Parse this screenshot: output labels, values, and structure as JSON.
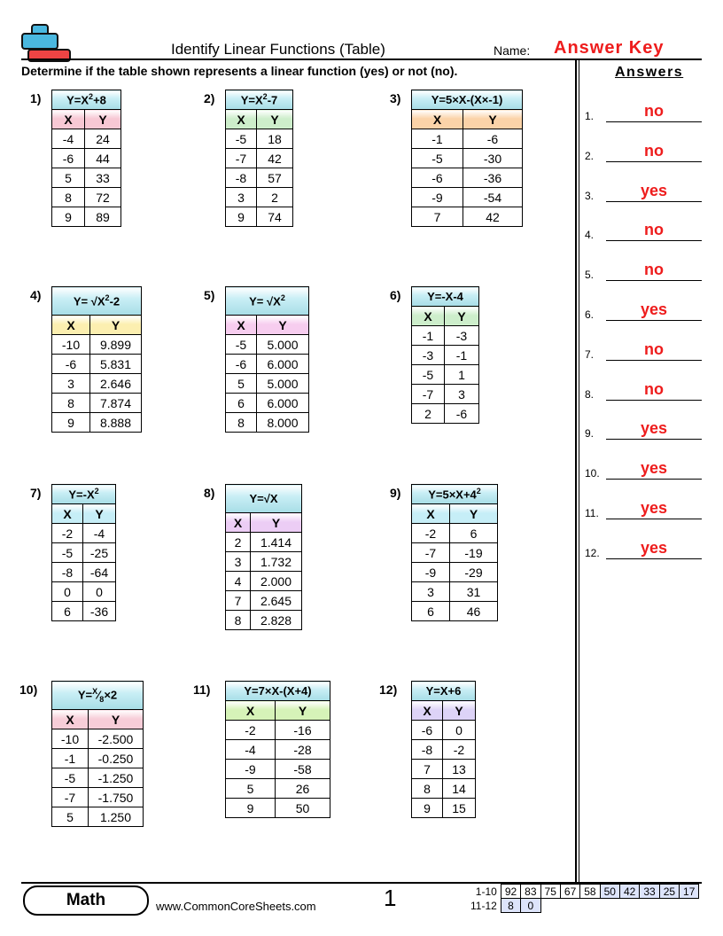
{
  "header": {
    "title": "Identify Linear Functions (Table)",
    "name_label": "Name:",
    "name_value": "Answer Key",
    "instructions": "Determine if the table shown represents a linear function (yes) or not (no)."
  },
  "colors": {
    "accent_red": "#ee1c1c",
    "logo_blue": "#4ab8e0",
    "logo_red": "#ee4444",
    "score_highlight": "#dde4fb"
  },
  "answers": {
    "heading": "Answers",
    "items": [
      {
        "num": "1.",
        "val": "no"
      },
      {
        "num": "2.",
        "val": "no"
      },
      {
        "num": "3.",
        "val": "yes"
      },
      {
        "num": "4.",
        "val": "no"
      },
      {
        "num": "5.",
        "val": "no"
      },
      {
        "num": "6.",
        "val": "yes"
      },
      {
        "num": "7.",
        "val": "no"
      },
      {
        "num": "8.",
        "val": "no"
      },
      {
        "num": "9.",
        "val": "yes"
      },
      {
        "num": "10.",
        "val": "yes"
      },
      {
        "num": "11.",
        "val": "yes"
      },
      {
        "num": "12.",
        "val": "yes"
      }
    ]
  },
  "problems": [
    {
      "label": "1)",
      "formula": [
        {
          "t": "Y=X"
        },
        {
          "t": "2",
          "s": "sup"
        },
        {
          "t": "+8"
        }
      ],
      "hdr_color": "#f7c8d4",
      "cols": [
        "X",
        "Y"
      ],
      "rows": [
        [
          "-4",
          "24"
        ],
        [
          "-6",
          "44"
        ],
        [
          "5",
          "33"
        ],
        [
          "8",
          "72"
        ],
        [
          "9",
          "89"
        ]
      ]
    },
    {
      "label": "2)",
      "formula": [
        {
          "t": "Y=X"
        },
        {
          "t": "2",
          "s": "sup"
        },
        {
          "t": "-7"
        }
      ],
      "hdr_color": "#cdeecb",
      "cols": [
        "X",
        "Y"
      ],
      "rows": [
        [
          "-5",
          "18"
        ],
        [
          "-7",
          "42"
        ],
        [
          "-8",
          "57"
        ],
        [
          "3",
          "2"
        ],
        [
          "9",
          "74"
        ]
      ]
    },
    {
      "label": "3)",
      "formula": [
        {
          "t": "Y=5×X-(X×-1)"
        }
      ],
      "hdr_color": "#fbd3a8",
      "cols": [
        "X",
        "Y"
      ],
      "rows": [
        [
          "-1",
          "-6"
        ],
        [
          "-5",
          "-30"
        ],
        [
          "-6",
          "-36"
        ],
        [
          "-9",
          "-54"
        ],
        [
          "7",
          "42"
        ]
      ]
    },
    {
      "label": "4)",
      "formula": [
        {
          "t": "Y= √X"
        },
        {
          "t": "2",
          "s": "sup"
        },
        {
          "t": "-2"
        }
      ],
      "hdr_color": "#fcefb0",
      "cols": [
        "X",
        "Y"
      ],
      "rows": [
        [
          "-10",
          "9.899"
        ],
        [
          "-6",
          "5.831"
        ],
        [
          "3",
          "2.646"
        ],
        [
          "8",
          "7.874"
        ],
        [
          "9",
          "8.888"
        ]
      ]
    },
    {
      "label": "5)",
      "formula": [
        {
          "t": "Y= √X"
        },
        {
          "t": "2",
          "s": "sup"
        }
      ],
      "hdr_color": "#f7cdef",
      "cols": [
        "X",
        "Y"
      ],
      "rows": [
        [
          "-5",
          "5.000"
        ],
        [
          "-6",
          "6.000"
        ],
        [
          "5",
          "5.000"
        ],
        [
          "6",
          "6.000"
        ],
        [
          "8",
          "8.000"
        ]
      ]
    },
    {
      "label": "6)",
      "formula": [
        {
          "t": "Y=-X-4"
        }
      ],
      "hdr_color": "#cdeecb",
      "cols": [
        "X",
        "Y"
      ],
      "rows": [
        [
          "-1",
          "-3"
        ],
        [
          "-3",
          "-1"
        ],
        [
          "-5",
          "1"
        ],
        [
          "-7",
          "3"
        ],
        [
          "2",
          "-6"
        ]
      ]
    },
    {
      "label": "7)",
      "formula": [
        {
          "t": "Y=-X"
        },
        {
          "t": "2",
          "s": "sup"
        }
      ],
      "hdr_color": "#c6eef7",
      "cols": [
        "X",
        "Y"
      ],
      "rows": [
        [
          "-2",
          "-4"
        ],
        [
          "-5",
          "-25"
        ],
        [
          "-8",
          "-64"
        ],
        [
          "0",
          "0"
        ],
        [
          "6",
          "-36"
        ]
      ]
    },
    {
      "label": "8)",
      "formula": [
        {
          "t": "Y=√X"
        }
      ],
      "hdr_color": "#eccdf5",
      "cols": [
        "X",
        "Y"
      ],
      "rows": [
        [
          "2",
          "1.414"
        ],
        [
          "3",
          "1.732"
        ],
        [
          "4",
          "2.000"
        ],
        [
          "7",
          "2.645"
        ],
        [
          "8",
          "2.828"
        ]
      ]
    },
    {
      "label": "9)",
      "formula": [
        {
          "t": "Y=5×X+4"
        },
        {
          "t": "2",
          "s": "sup"
        }
      ],
      "hdr_color": "#c6eef7",
      "cols": [
        "X",
        "Y"
      ],
      "rows": [
        [
          "-2",
          "6"
        ],
        [
          "-7",
          "-19"
        ],
        [
          "-9",
          "-29"
        ],
        [
          "3",
          "31"
        ],
        [
          "6",
          "46"
        ]
      ]
    },
    {
      "label": "10)",
      "formula": [
        {
          "t": "Y="
        },
        {
          "t": "X",
          "s": "sup"
        },
        {
          "t": "⁄"
        },
        {
          "t": "8",
          "s": "sub"
        },
        {
          "t": "×2"
        }
      ],
      "hdr_color": "#f7cdd8",
      "cols": [
        "X",
        "Y"
      ],
      "rows": [
        [
          "-10",
          "-2.500"
        ],
        [
          "-1",
          "-0.250"
        ],
        [
          "-5",
          "-1.250"
        ],
        [
          "-7",
          "-1.750"
        ],
        [
          "5",
          "1.250"
        ]
      ]
    },
    {
      "label": "11)",
      "formula": [
        {
          "t": "Y=7×X-(X+4)"
        }
      ],
      "hdr_color": "#d6f3b8",
      "cols": [
        "X",
        "Y"
      ],
      "rows": [
        [
          "-2",
          "-16"
        ],
        [
          "-4",
          "-28"
        ],
        [
          "-9",
          "-58"
        ],
        [
          "5",
          "26"
        ],
        [
          "9",
          "50"
        ]
      ]
    },
    {
      "label": "12)",
      "formula": [
        {
          "t": "Y=X+6"
        }
      ],
      "hdr_color": "#ddd3f7",
      "cols": [
        "X",
        "Y"
      ],
      "rows": [
        [
          "-6",
          "0"
        ],
        [
          "-8",
          "-2"
        ],
        [
          "7",
          "13"
        ],
        [
          "8",
          "14"
        ],
        [
          "9",
          "15"
        ]
      ]
    }
  ],
  "footer": {
    "subject": "Math",
    "site": "www.CommonCoreSheets.com",
    "page": "1",
    "score_rows": [
      {
        "label": "1-10",
        "values": [
          "92",
          "83",
          "75",
          "67",
          "58",
          "50",
          "42",
          "33",
          "25",
          "17"
        ]
      },
      {
        "label": "11-12",
        "values": [
          "8",
          "0"
        ]
      }
    ]
  }
}
